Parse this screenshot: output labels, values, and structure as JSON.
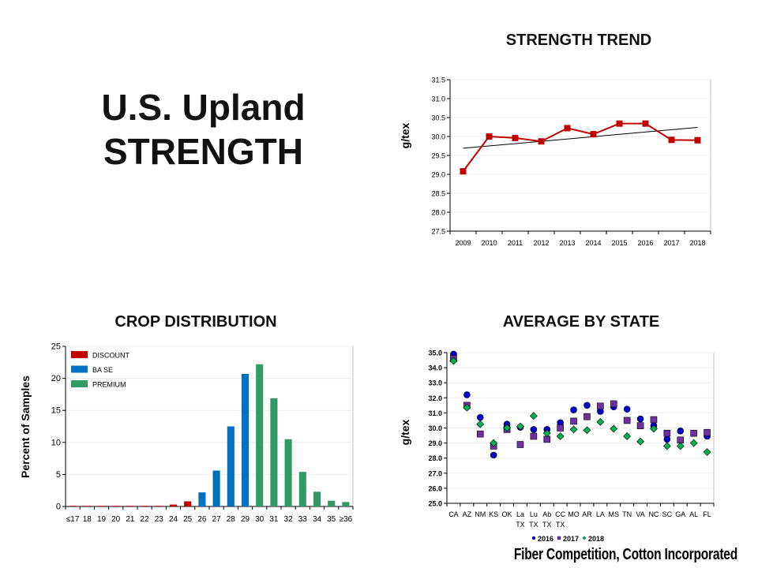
{
  "slide": {
    "title_line1": "U.S. Upland",
    "title_line2": "STRENGTH",
    "footer": "Fiber Competition, Cotton Incorporated"
  },
  "chart_data": [
    {
      "id": "trend",
      "type": "line",
      "title": "STRENGTH TREND",
      "ylabel": "g/tex",
      "xlabel": "",
      "categories": [
        "2009",
        "2010",
        "2011",
        "2012",
        "2013",
        "2014",
        "2015",
        "2016",
        "2017",
        "2018"
      ],
      "values": [
        29.08,
        30.0,
        29.96,
        29.87,
        30.22,
        30.06,
        30.34,
        30.34,
        29.91,
        29.9
      ],
      "trendline": [
        29.69,
        30.24
      ],
      "ylim": [
        27.5,
        31.5
      ],
      "yticks": [
        "27.5",
        "28.0",
        "28.5",
        "29.0",
        "29.5",
        "30.0",
        "30.5",
        "31.0",
        "31.5"
      ],
      "grid": true,
      "color": "#c00000",
      "trend_color": "#000000"
    },
    {
      "id": "distribution",
      "type": "bar",
      "title": "CROP DISTRIBUTION",
      "ylabel": "Percent of Samples",
      "xlabel": "",
      "categories": [
        "≤17",
        "18",
        "19",
        "20",
        "21",
        "22",
        "23",
        "24",
        "25",
        "26",
        "27",
        "28",
        "29",
        "30",
        "31",
        "32",
        "33",
        "34",
        "35",
        "≥36"
      ],
      "values": [
        0.1,
        0.1,
        0.1,
        0.1,
        0.1,
        0.1,
        0.1,
        0.3,
        0.8,
        2.2,
        5.6,
        12.5,
        20.7,
        22.2,
        16.9,
        10.5,
        5.4,
        2.3,
        0.9,
        0.7
      ],
      "groups": [
        "DISCOUNT",
        "DISCOUNT",
        "DISCOUNT",
        "DISCOUNT",
        "DISCOUNT",
        "DISCOUNT",
        "DISCOUNT",
        "DISCOUNT",
        "DISCOUNT",
        "BA SE",
        "BA SE",
        "BA SE",
        "BA SE",
        "PREMIUM",
        "PREMIUM",
        "PREMIUM",
        "PREMIUM",
        "PREMIUM",
        "PREMIUM",
        "PREMIUM"
      ],
      "legend": [
        {
          "name": "DISCOUNT",
          "color": "#c00000"
        },
        {
          "name": "BA SE",
          "color": "#0070c0"
        },
        {
          "name": "PREMIUM",
          "color": "#339966"
        }
      ],
      "legend_position": "top-left",
      "ylim": [
        0,
        25
      ],
      "yticks": [
        "0",
        "5",
        "10",
        "15",
        "20",
        "25"
      ],
      "grid": true
    },
    {
      "id": "state",
      "type": "scatter",
      "title": "AVERAGE BY STATE",
      "ylabel": "g/tex",
      "xlabel": "",
      "categories": [
        [
          "CA"
        ],
        [
          "AZ"
        ],
        [
          "NM"
        ],
        [
          "KS"
        ],
        [
          "OK"
        ],
        [
          "La",
          "TX"
        ],
        [
          "Lu",
          "TX"
        ],
        [
          "Ab",
          "TX"
        ],
        [
          "CC",
          "TX"
        ],
        [
          "MO"
        ],
        [
          "AR"
        ],
        [
          "LA"
        ],
        [
          "MS"
        ],
        [
          "TN"
        ],
        [
          "VA"
        ],
        [
          "NC"
        ],
        [
          "SC"
        ],
        [
          "GA"
        ],
        [
          "AL"
        ],
        [
          "FL"
        ]
      ],
      "series": [
        {
          "name": "2016",
          "marker": "circle",
          "color": "#0000cc",
          "values": [
            34.9,
            32.2,
            30.7,
            28.2,
            30.25,
            30.05,
            29.9,
            29.9,
            30.35,
            31.2,
            31.5,
            31.1,
            31.4,
            31.25,
            30.6,
            30.15,
            29.25,
            29.8,
            null,
            29.45
          ]
        },
        {
          "name": "2017",
          "marker": "square",
          "color": "#7030a0",
          "values": [
            34.6,
            31.5,
            29.6,
            28.8,
            29.9,
            28.9,
            29.45,
            29.25,
            30.0,
            30.45,
            30.75,
            31.45,
            31.6,
            30.5,
            30.15,
            30.55,
            29.65,
            29.2,
            29.65,
            29.7
          ]
        },
        {
          "name": "2018",
          "marker": "diamond",
          "color": "#00b050",
          "values": [
            34.45,
            31.35,
            30.25,
            29.0,
            30.0,
            30.1,
            30.8,
            29.65,
            29.45,
            29.9,
            29.85,
            30.4,
            29.95,
            29.45,
            29.1,
            29.95,
            28.8,
            28.8,
            29.0,
            28.4
          ]
        }
      ],
      "legend_position": "bottom",
      "ylim": [
        25.0,
        35.0
      ],
      "yticks": [
        "25.0",
        "26.0",
        "27.0",
        "28.0",
        "29.0",
        "30.0",
        "31.0",
        "32.0",
        "33.0",
        "34.0",
        "35.0"
      ],
      "grid": true
    }
  ]
}
